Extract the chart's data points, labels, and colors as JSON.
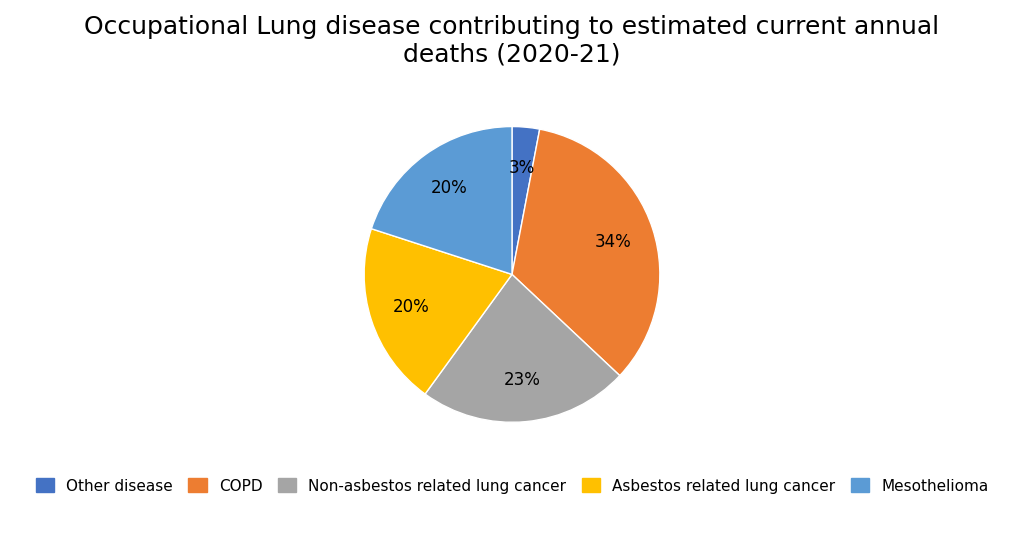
{
  "title": "Occupational Lung disease contributing to estimated current annual\ndeaths (2020-21)",
  "labels": [
    "Other disease",
    "COPD",
    "Non-asbestos related lung cancer",
    "Asbestos related lung cancer",
    "Mesothelioma"
  ],
  "values": [
    3,
    34,
    23,
    20,
    20
  ],
  "colors": [
    "#4472C4",
    "#ED7D31",
    "#A5A5A5",
    "#FFC000",
    "#5B9BD5"
  ],
  "pct_labels": [
    "3%",
    "34%",
    "23%",
    "20%",
    "20%"
  ],
  "title_fontsize": 18,
  "legend_fontsize": 11,
  "background_color": "#FFFFFF",
  "startangle": 90,
  "pct_distance": 0.72
}
